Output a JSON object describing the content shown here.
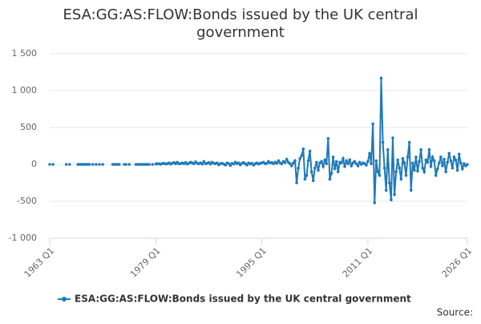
{
  "chart_data": {
    "type": "line",
    "title": "ESA:GG:AS:FLOW:Bonds issued by the UK central government",
    "source": "Source:",
    "categories": [
      "1963 Q1",
      null,
      null,
      null,
      null,
      null,
      null,
      null,
      null,
      null,
      null,
      null,
      null,
      null,
      null,
      null,
      null,
      null,
      null,
      null,
      null,
      null,
      null,
      null,
      null,
      null,
      null,
      null,
      null,
      null,
      null,
      null,
      null,
      null,
      null,
      null,
      null,
      null,
      null,
      null,
      null,
      null,
      null,
      null,
      null,
      null,
      null,
      null,
      null,
      null,
      null,
      null,
      null,
      null,
      null,
      null,
      null,
      null,
      null,
      null,
      null,
      null,
      null,
      null,
      "1979 Q1",
      null,
      null,
      null,
      null,
      null,
      null,
      null,
      null,
      null,
      null,
      null,
      null,
      null,
      null,
      null,
      null,
      null,
      null,
      null,
      null,
      null,
      null,
      null,
      null,
      null,
      null,
      null,
      null,
      null,
      null,
      null,
      null,
      null,
      null,
      null,
      null,
      null,
      null,
      null,
      null,
      null,
      null,
      null,
      null,
      null,
      null,
      null,
      null,
      null,
      null,
      null,
      null,
      null,
      null,
      null,
      null,
      null,
      null,
      null,
      null,
      null,
      null,
      null,
      "1995 Q1",
      null,
      null,
      null,
      null,
      null,
      null,
      null,
      null,
      null,
      null,
      null,
      null,
      null,
      null,
      null,
      null,
      null,
      null,
      null,
      null,
      null,
      null,
      null,
      null,
      null,
      null,
      null,
      null,
      null,
      null,
      null,
      null,
      null,
      null,
      null,
      null,
      null,
      null,
      null,
      null,
      null,
      null,
      null,
      null,
      null,
      null,
      null,
      null,
      null,
      null,
      null,
      null,
      null,
      null,
      null,
      null,
      null,
      null,
      null,
      null,
      null,
      null,
      null,
      "2011 Q1",
      null,
      null,
      null,
      null,
      null,
      null,
      null,
      null,
      null,
      null,
      null,
      null,
      null,
      null,
      null,
      null,
      null,
      null,
      null,
      null,
      null,
      null,
      null,
      null,
      null,
      null,
      null,
      null,
      null,
      null,
      null,
      null,
      null,
      null,
      null,
      null,
      null,
      null,
      null,
      null,
      null,
      null,
      null,
      null,
      null,
      null,
      null,
      null,
      null,
      null,
      null,
      null,
      null,
      null,
      null,
      null,
      null,
      null,
      null,
      "2026 Q1"
    ],
    "series": [
      {
        "name": "ESA:GG:AS:FLOW:Bonds issued by the UK central government",
        "color": "#1f7ab8",
        "values": [
          0,
          null,
          0,
          null,
          null,
          null,
          null,
          null,
          null,
          null,
          0,
          null,
          0,
          null,
          null,
          null,
          null,
          0,
          0,
          0,
          0,
          0,
          0,
          0,
          0,
          null,
          0,
          null,
          0,
          null,
          0,
          null,
          0,
          null,
          null,
          null,
          null,
          null,
          0,
          0,
          0,
          0,
          0,
          null,
          null,
          0,
          0,
          null,
          0,
          null,
          null,
          null,
          0,
          0,
          0,
          0,
          0,
          0,
          0,
          0,
          0,
          null,
          0,
          null,
          5,
          10,
          8,
          3,
          12,
          15,
          6,
          10,
          20,
          5,
          15,
          25,
          10,
          30,
          8,
          12,
          20,
          10,
          25,
          5,
          15,
          30,
          20,
          10,
          35,
          15,
          10,
          20,
          5,
          40,
          10,
          15,
          25,
          5,
          30,
          15,
          10,
          20,
          -5,
          10,
          15,
          5,
          -10,
          20,
          10,
          -15,
          15,
          5,
          30,
          10,
          20,
          -5,
          15,
          25,
          10,
          -10,
          20,
          5,
          15,
          -10,
          10,
          20,
          5,
          15,
          20,
          30,
          10,
          15,
          40,
          20,
          25,
          10,
          30,
          15,
          50,
          20,
          10,
          40,
          25,
          70,
          30,
          10,
          -20,
          20,
          50,
          -250,
          -50,
          80,
          120,
          210,
          -200,
          -150,
          50,
          180,
          -100,
          -220,
          -50,
          30,
          -80,
          20,
          40,
          -30,
          60,
          10,
          350,
          -200,
          -120,
          100,
          -60,
          40,
          -100,
          30,
          20,
          80,
          -30,
          50,
          10,
          60,
          -20,
          20,
          40,
          10,
          -20,
          30,
          0,
          20,
          10,
          -10,
          40,
          150,
          10,
          550,
          -520,
          50,
          -100,
          -150,
          1170,
          300,
          -50,
          -350,
          200,
          -250,
          -480,
          360,
          -410,
          -100,
          60,
          -50,
          -200,
          80,
          20,
          -150,
          100,
          300,
          -350,
          20,
          -80,
          100,
          -90,
          40,
          200,
          -50,
          -100,
          60,
          30,
          200,
          -30,
          100,
          50,
          -150,
          -60,
          20,
          100,
          -20,
          70,
          -100,
          30,
          150,
          50,
          -50,
          100,
          60,
          -80,
          140,
          20,
          -60,
          10,
          -20,
          0
        ]
      }
    ],
    "ylim": [
      -1000,
      1500
    ],
    "yticks": [
      {
        "value": -1000,
        "label": "-1 000"
      },
      -500,
      0,
      500,
      {
        "value": 1000,
        "label": "1 000"
      },
      {
        "value": 1500,
        "label": "1 500"
      }
    ],
    "grid": true,
    "legend": "bottom"
  }
}
